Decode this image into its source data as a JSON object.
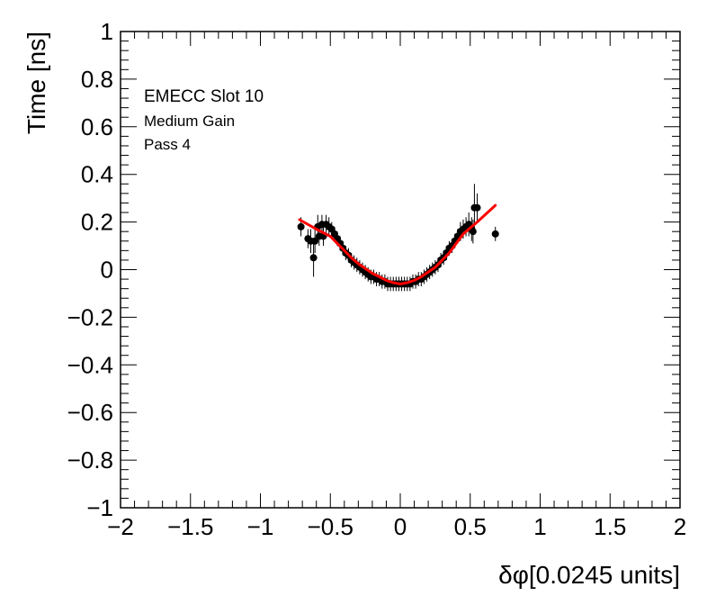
{
  "chart_data": {
    "type": "scatter",
    "title": "",
    "xlabel": "δφ[0.0245 units]",
    "ylabel": "Time [ns]",
    "xlim": [
      -2,
      2
    ],
    "ylim": [
      -1,
      1
    ],
    "x_major_ticks": [
      -2,
      -1.5,
      -1,
      -0.5,
      0,
      0.5,
      1,
      1.5,
      2
    ],
    "y_major_ticks": [
      -1,
      -0.8,
      -0.6,
      -0.4,
      -0.2,
      0,
      0.2,
      0.4,
      0.6,
      0.8,
      1
    ],
    "x_tick_labels": [
      "−2",
      "−1.5",
      "−1",
      "−0.5",
      "0",
      "0.5",
      "1",
      "1.5",
      "2"
    ],
    "y_tick_labels": [
      "−1",
      "−0.8",
      "−0.6",
      "−0.4",
      "−0.2",
      "0",
      "0.2",
      "0.4",
      "0.6",
      "0.8",
      "1"
    ],
    "grid": false,
    "legend": "none",
    "annotations": [
      "EMECC Slot 10",
      "Medium Gain",
      "Pass 4"
    ],
    "series": [
      {
        "kind": "points_with_errors",
        "color": "#000000",
        "points": [
          {
            "x": -0.71,
            "y": 0.18,
            "err": 0.04
          },
          {
            "x": -0.66,
            "y": 0.13,
            "err": 0.04
          },
          {
            "x": -0.64,
            "y": 0.12,
            "err": 0.05
          },
          {
            "x": -0.62,
            "y": 0.05,
            "err": 0.08
          },
          {
            "x": -0.61,
            "y": 0.12,
            "err": 0.05
          },
          {
            "x": -0.59,
            "y": 0.18,
            "err": 0.05
          },
          {
            "x": -0.58,
            "y": 0.14,
            "err": 0.04
          },
          {
            "x": -0.56,
            "y": 0.19,
            "err": 0.04
          },
          {
            "x": -0.55,
            "y": 0.14,
            "err": 0.04
          },
          {
            "x": -0.53,
            "y": 0.19,
            "err": 0.04
          },
          {
            "x": -0.51,
            "y": 0.18,
            "err": 0.04
          },
          {
            "x": -0.49,
            "y": 0.17,
            "err": 0.03
          },
          {
            "x": -0.47,
            "y": 0.15,
            "err": 0.03
          },
          {
            "x": -0.45,
            "y": 0.13,
            "err": 0.03
          },
          {
            "x": -0.43,
            "y": 0.11,
            "err": 0.03
          },
          {
            "x": -0.41,
            "y": 0.09,
            "err": 0.03
          },
          {
            "x": -0.39,
            "y": 0.07,
            "err": 0.03
          },
          {
            "x": -0.37,
            "y": 0.06,
            "err": 0.03
          },
          {
            "x": -0.35,
            "y": 0.04,
            "err": 0.03
          },
          {
            "x": -0.33,
            "y": 0.03,
            "err": 0.03
          },
          {
            "x": -0.31,
            "y": 0.02,
            "err": 0.03
          },
          {
            "x": -0.29,
            "y": 0.01,
            "err": 0.03
          },
          {
            "x": -0.27,
            "y": 0.0,
            "err": 0.03
          },
          {
            "x": -0.25,
            "y": -0.01,
            "err": 0.03
          },
          {
            "x": -0.23,
            "y": -0.02,
            "err": 0.03
          },
          {
            "x": -0.21,
            "y": -0.03,
            "err": 0.03
          },
          {
            "x": -0.19,
            "y": -0.03,
            "err": 0.03
          },
          {
            "x": -0.17,
            "y": -0.04,
            "err": 0.03
          },
          {
            "x": -0.15,
            "y": -0.04,
            "err": 0.03
          },
          {
            "x": -0.13,
            "y": -0.05,
            "err": 0.03
          },
          {
            "x": -0.11,
            "y": -0.05,
            "err": 0.03
          },
          {
            "x": -0.09,
            "y": -0.06,
            "err": 0.03
          },
          {
            "x": -0.07,
            "y": -0.06,
            "err": 0.03
          },
          {
            "x": -0.05,
            "y": -0.06,
            "err": 0.03
          },
          {
            "x": -0.03,
            "y": -0.06,
            "err": 0.03
          },
          {
            "x": -0.01,
            "y": -0.06,
            "err": 0.03
          },
          {
            "x": 0.01,
            "y": -0.06,
            "err": 0.03
          },
          {
            "x": 0.03,
            "y": -0.06,
            "err": 0.03
          },
          {
            "x": 0.05,
            "y": -0.06,
            "err": 0.03
          },
          {
            "x": 0.07,
            "y": -0.06,
            "err": 0.03
          },
          {
            "x": 0.09,
            "y": -0.05,
            "err": 0.03
          },
          {
            "x": 0.11,
            "y": -0.05,
            "err": 0.03
          },
          {
            "x": 0.13,
            "y": -0.04,
            "err": 0.03
          },
          {
            "x": 0.15,
            "y": -0.04,
            "err": 0.03
          },
          {
            "x": 0.17,
            "y": -0.03,
            "err": 0.03
          },
          {
            "x": 0.19,
            "y": -0.02,
            "err": 0.03
          },
          {
            "x": 0.21,
            "y": -0.01,
            "err": 0.03
          },
          {
            "x": 0.23,
            "y": 0.0,
            "err": 0.03
          },
          {
            "x": 0.25,
            "y": 0.01,
            "err": 0.03
          },
          {
            "x": 0.27,
            "y": 0.02,
            "err": 0.03
          },
          {
            "x": 0.29,
            "y": 0.04,
            "err": 0.03
          },
          {
            "x": 0.31,
            "y": 0.05,
            "err": 0.03
          },
          {
            "x": 0.33,
            "y": 0.07,
            "err": 0.03
          },
          {
            "x": 0.35,
            "y": 0.09,
            "err": 0.03
          },
          {
            "x": 0.37,
            "y": 0.1,
            "err": 0.03
          },
          {
            "x": 0.39,
            "y": 0.12,
            "err": 0.03
          },
          {
            "x": 0.41,
            "y": 0.14,
            "err": 0.03
          },
          {
            "x": 0.43,
            "y": 0.16,
            "err": 0.04
          },
          {
            "x": 0.45,
            "y": 0.17,
            "err": 0.04
          },
          {
            "x": 0.47,
            "y": 0.18,
            "err": 0.04
          },
          {
            "x": 0.49,
            "y": 0.19,
            "err": 0.05
          },
          {
            "x": 0.51,
            "y": 0.17,
            "err": 0.05
          },
          {
            "x": 0.53,
            "y": 0.26,
            "err": 0.1
          },
          {
            "x": 0.55,
            "y": 0.26,
            "err": 0.06
          },
          {
            "x": 0.52,
            "y": 0.16,
            "err": 0.05
          },
          {
            "x": 0.68,
            "y": 0.15,
            "err": 0.03
          }
        ]
      },
      {
        "kind": "fit_line",
        "color": "#ff0000",
        "x": [
          -0.72,
          -0.6,
          -0.5,
          -0.45,
          -0.4,
          -0.35,
          -0.3,
          -0.25,
          -0.2,
          -0.15,
          -0.1,
          -0.05,
          0.0,
          0.05,
          0.1,
          0.15,
          0.2,
          0.25,
          0.3,
          0.35,
          0.4,
          0.45,
          0.55,
          0.68
        ],
        "y": [
          0.21,
          0.17,
          0.14,
          0.11,
          0.08,
          0.05,
          0.025,
          0.005,
          -0.015,
          -0.03,
          -0.045,
          -0.055,
          -0.06,
          -0.055,
          -0.045,
          -0.03,
          -0.01,
          0.01,
          0.04,
          0.07,
          0.11,
          0.15,
          0.2,
          0.27
        ]
      }
    ]
  }
}
